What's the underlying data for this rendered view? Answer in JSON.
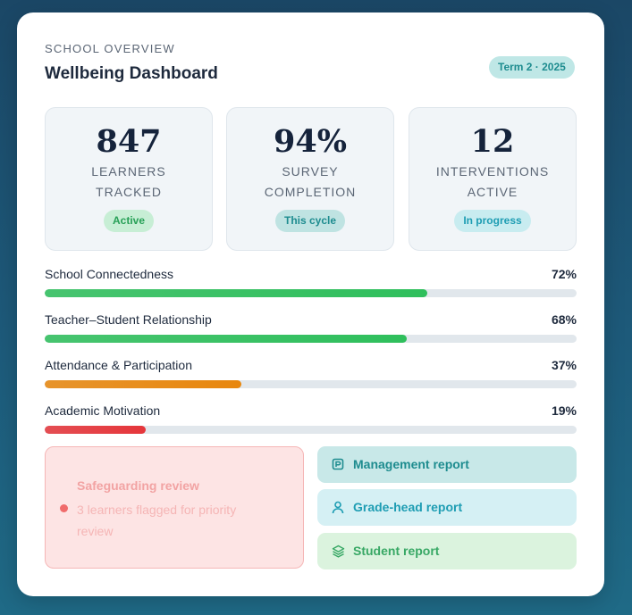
{
  "header": {
    "eyebrow": "SCHOOL OVERVIEW",
    "title": "Wellbeing Dashboard",
    "term_badge": "Term 2 · 2025"
  },
  "stats": [
    {
      "value": "847",
      "label": "LEARNERS TRACKED",
      "badge": "Active"
    },
    {
      "value": "94%",
      "label": "SURVEY COMPLETION",
      "badge": "This cycle"
    },
    {
      "value": "12",
      "label": "INTERVENTIONS ACTIVE",
      "badge": "In progress"
    }
  ],
  "metrics": [
    {
      "name": "School Connectedness",
      "value_label": "72%",
      "value": 72,
      "color": "#2fbf5c"
    },
    {
      "name": "Teacher–Student Relationship",
      "value_label": "68%",
      "value": 68,
      "color": "#2fbf5c"
    },
    {
      "name": "Attendance & Participation",
      "value_label": "37%",
      "value": 37,
      "color": "#e8870e"
    },
    {
      "name": "Academic Motivation",
      "value_label": "19%",
      "value": 19,
      "color": "#e5363b"
    }
  ],
  "alert": {
    "title": "Safeguarding review",
    "text": "3 learners flagged for priority review"
  },
  "reports": {
    "management": "Management report",
    "grade_head": "Grade-head report",
    "student": "Student report"
  },
  "icons": {
    "management": "report-doc-icon",
    "grade_head": "user-icon",
    "student": "layers-icon"
  }
}
